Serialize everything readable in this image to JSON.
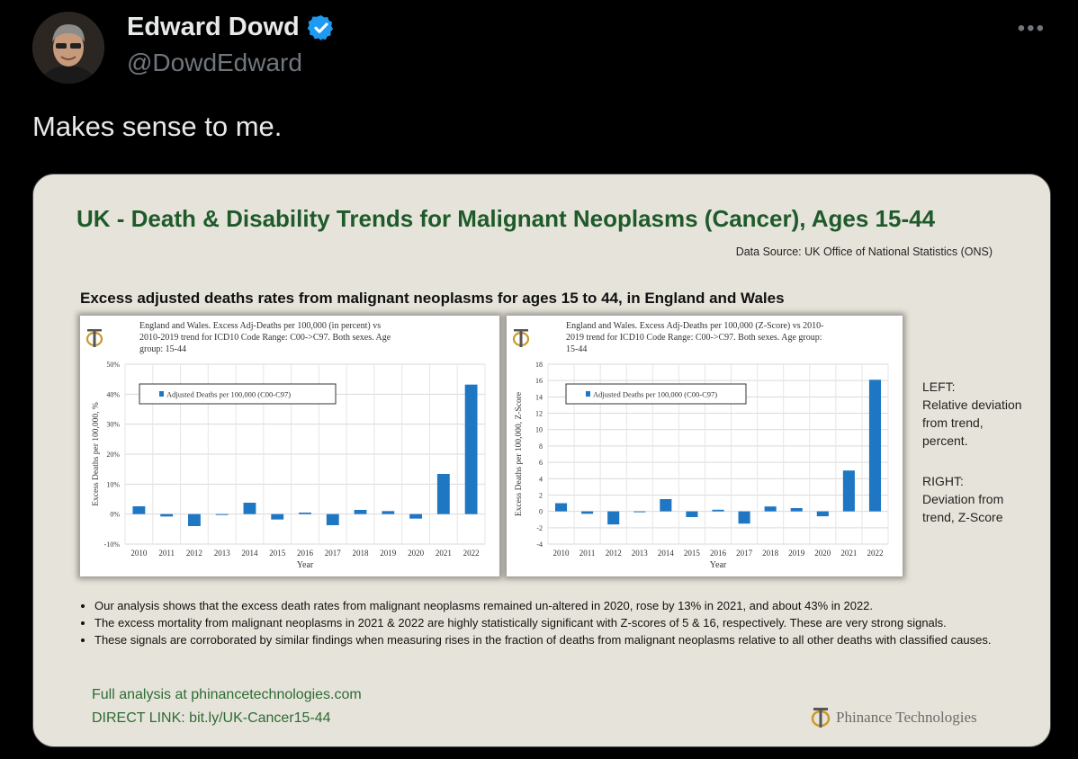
{
  "post": {
    "author_name": "Edward Dowd",
    "handle": "@DowdEdward",
    "more_label": "•••",
    "text": "Makes sense to me."
  },
  "card": {
    "title": "UK - Death & Disability Trends for Malignant Neoplasms (Cancer), Ages 15-44",
    "source": "Data Source: UK Office of National Statistics (ONS)",
    "subtitle": "Excess adjusted deaths rates from malignant neoplasms for ages 15 to 44, in England and Wales",
    "side_left_heading": "LEFT:",
    "side_left_lines": [
      "Relative deviation",
      "from trend,",
      "percent."
    ],
    "side_right_heading": "RIGHT:",
    "side_right_lines": [
      "Deviation from",
      "trend, Z-Score"
    ],
    "bullets": [
      "Our analysis shows that the excess death rates from malignant neoplasms remained un-altered in 2020, rose by 13% in 2021, and about 43% in 2022.",
      "The excess mortality from malignant neoplasms in 2021 & 2022 are highly statistically significant with Z-scores of 5 & 16, respectively. These are very strong signals.",
      "These signals are corroborated by similar findings when measuring rises in the fraction of deaths from malignant neoplasms relative to all other deaths with classified causes."
    ],
    "link_text": "Full analysis at phinancetechnologies.com",
    "direct_link": "DIRECT LINK: bit.ly/UK-Cancer15-44",
    "brand": "Phinance Technologies"
  },
  "colors": {
    "bar": "#1f77c4",
    "title_green": "#1f5a2a",
    "link_green": "#2e6b34",
    "verified": "#1d9bf0"
  },
  "chart_data": [
    {
      "type": "bar",
      "title_lines": [
        "England and Wales. Excess Adj-Deaths per 100,000 (in percent) vs",
        "2010-2019 trend for ICD10 Code Range: C00->C97. Both sexes. Age",
        "group: 15-44"
      ],
      "xlabel": "Year",
      "ylabel": "Excess Deaths per 100,000, %",
      "legend": "Adjusted Deaths per 100,000 (C00-C97)",
      "ylim": [
        -10,
        50
      ],
      "yticks": [
        -10,
        0,
        10,
        20,
        30,
        40,
        50
      ],
      "ytick_labels": [
        "-10%",
        "0%",
        "10%",
        "20%",
        "30%",
        "40%",
        "50%"
      ],
      "categories": [
        "2010",
        "2011",
        "2012",
        "2013",
        "2014",
        "2015",
        "2016",
        "2017",
        "2018",
        "2019",
        "2020",
        "2021",
        "2022"
      ],
      "values": [
        2.6,
        -0.8,
        -4.0,
        -0.3,
        3.8,
        -1.8,
        0.5,
        -3.7,
        1.4,
        1.0,
        -1.5,
        13.4,
        43.2
      ]
    },
    {
      "type": "bar",
      "title_lines": [
        "England and Wales. Excess Adj-Deaths per 100,000 (Z-Score) vs 2010-",
        "2019 trend for ICD10 Code Range: C00->C97. Both sexes. Age group:",
        "15-44"
      ],
      "xlabel": "Year",
      "ylabel": "Excess Deaths per 100,000, Z-Score",
      "legend": "Adjusted Deaths per 100,000 (C00-C97)",
      "ylim": [
        -4,
        18
      ],
      "yticks": [
        -4,
        -2,
        0,
        2,
        4,
        6,
        8,
        10,
        12,
        14,
        16,
        18
      ],
      "ytick_labels": [
        "-4",
        "-2",
        "0",
        "2",
        "4",
        "6",
        "8",
        "10",
        "12",
        "14",
        "16",
        "18"
      ],
      "categories": [
        "2010",
        "2011",
        "2012",
        "2013",
        "2014",
        "2015",
        "2016",
        "2017",
        "2018",
        "2019",
        "2020",
        "2021",
        "2022"
      ],
      "values": [
        1.0,
        -0.3,
        -1.6,
        -0.1,
        1.5,
        -0.7,
        0.2,
        -1.5,
        0.6,
        0.4,
        -0.6,
        5.0,
        16.1
      ]
    }
  ]
}
